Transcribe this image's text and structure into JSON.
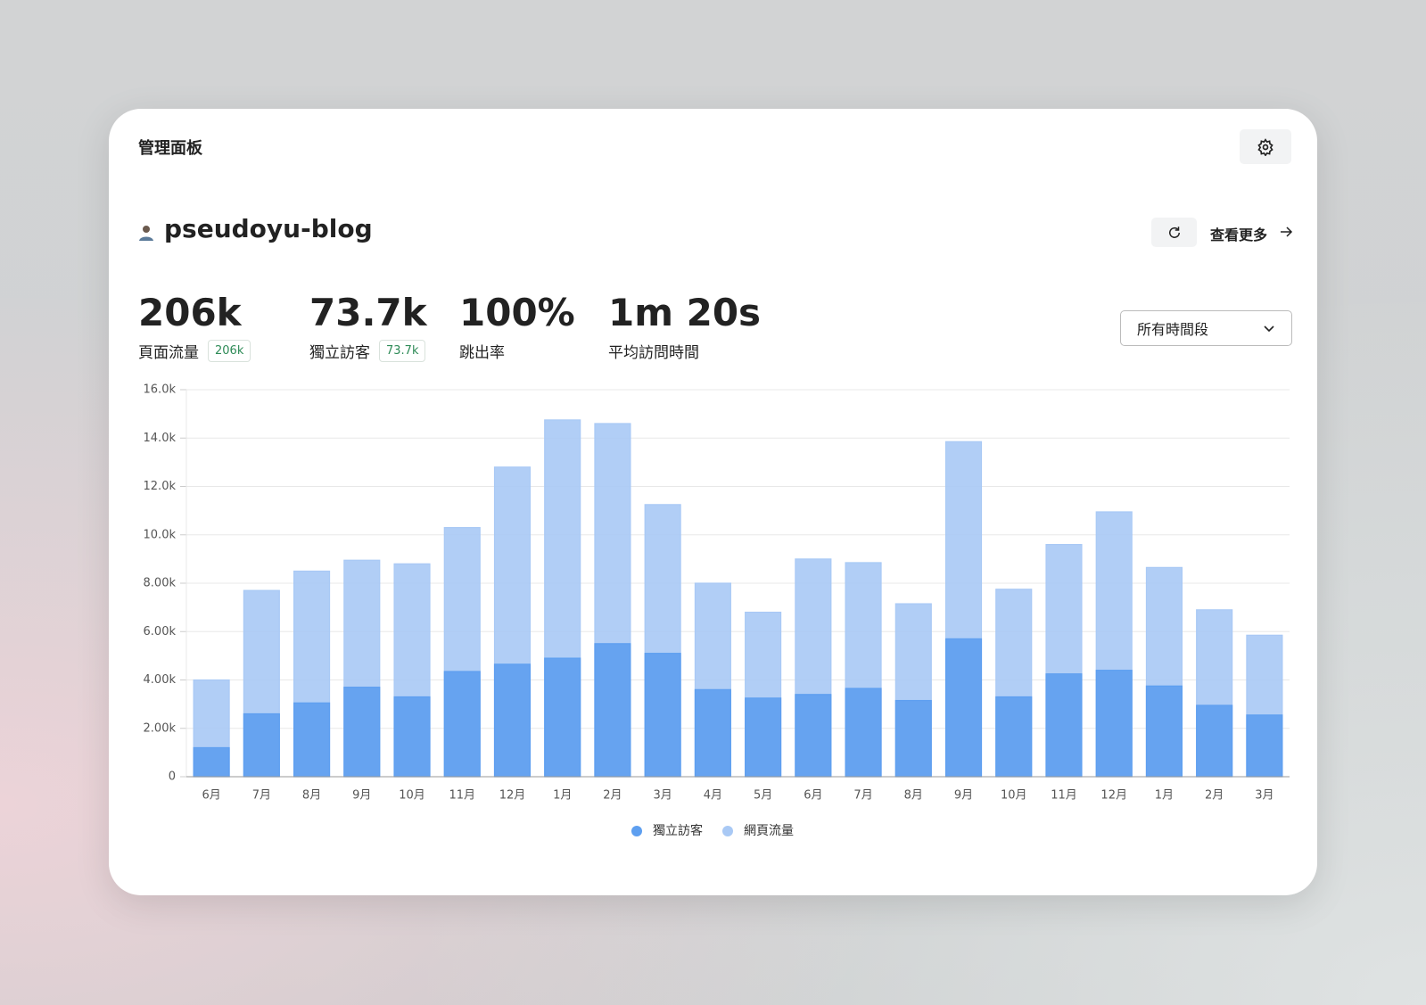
{
  "header": {
    "title": "管理面板"
  },
  "website": {
    "name": "pseudoyu-blog",
    "view_more": "查看更多"
  },
  "stats": [
    {
      "value": "206k",
      "label": "頁面流量",
      "badge": "206k"
    },
    {
      "value": "73.7k",
      "label": "獨立訪客",
      "badge": "73.7k"
    },
    {
      "value": "100%",
      "label": "跳出率"
    },
    {
      "value": "1m 20s",
      "label": "平均訪問時間"
    }
  ],
  "filter": {
    "selected": "所有時間段"
  },
  "chart_data": {
    "type": "bar",
    "categories": [
      "6月",
      "7月",
      "8月",
      "9月",
      "10月",
      "11月",
      "12月",
      "1月",
      "2月",
      "3月",
      "4月",
      "5月",
      "6月",
      "7月",
      "8月",
      "9月",
      "10月",
      "11月",
      "12月",
      "1月",
      "2月",
      "3月"
    ],
    "series": [
      {
        "name": "獨立訪客",
        "color": "#5e9ff0",
        "values": [
          1200,
          2600,
          3050,
          3700,
          3300,
          4350,
          4650,
          4900,
          5500,
          5100,
          3600,
          3250,
          3400,
          3650,
          3150,
          5700,
          3300,
          4250,
          4400,
          3750,
          2950,
          2550
        ]
      },
      {
        "name": "網頁流量",
        "color": "#a9c9f5",
        "values": [
          4000,
          7700,
          8500,
          8950,
          8800,
          10300,
          12800,
          14750,
          14600,
          11250,
          8000,
          6800,
          9000,
          8850,
          7150,
          13850,
          7750,
          9600,
          10950,
          8650,
          6900,
          5850
        ]
      }
    ],
    "ylim": [
      0,
      16000
    ],
    "yticks": [
      0,
      {
        "value": 2000,
        "label": "2.00k"
      },
      {
        "value": 4000,
        "label": "4.00k"
      },
      {
        "value": 6000,
        "label": "6.00k"
      },
      {
        "value": 8000,
        "label": "8.00k"
      },
      {
        "value": 10000,
        "label": "10.0k"
      },
      {
        "value": 12000,
        "label": "12.0k"
      },
      {
        "value": 14000,
        "label": "14.0k"
      },
      {
        "value": 16000,
        "label": "16.0k"
      }
    ],
    "grid": true,
    "legend": "bottom"
  }
}
